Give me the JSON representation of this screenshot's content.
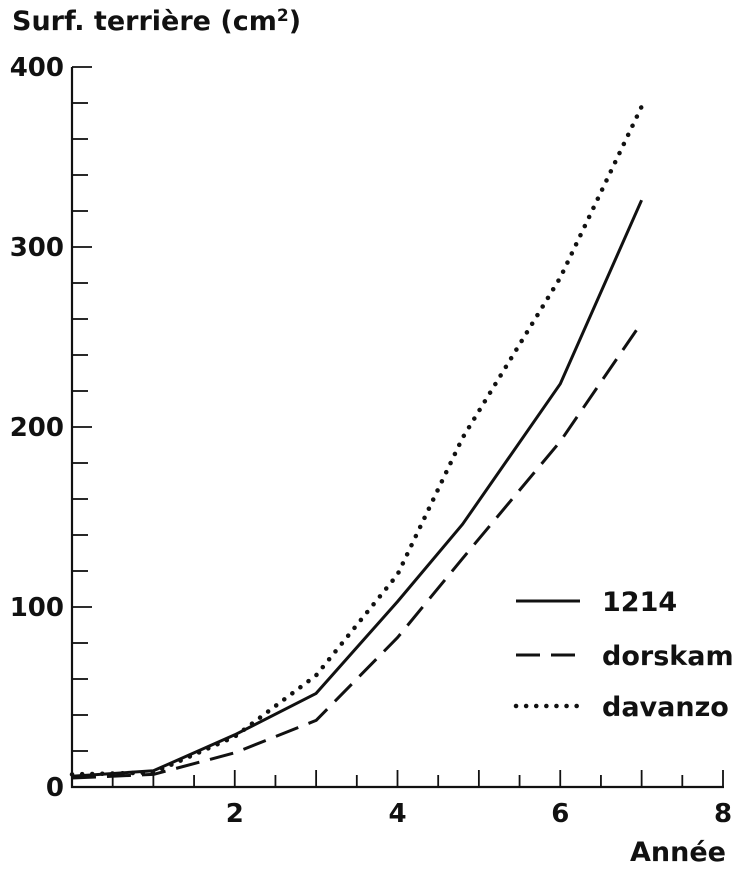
{
  "chart_data": {
    "type": "line",
    "title_main": "Surf. terrière (cm",
    "title_sup": "2",
    "title_close": ")",
    "xlabel": "Année",
    "xlim": [
      0,
      8
    ],
    "ylim": [
      0,
      400
    ],
    "x_ticks": [
      2,
      4,
      6,
      8
    ],
    "y_ticks": [
      0,
      100,
      200,
      300,
      400
    ],
    "y_minor_step": 20,
    "grid": false,
    "legend_position": "lower-right",
    "series": [
      {
        "name": "1214",
        "style": "solid",
        "points": [
          [
            0,
            6
          ],
          [
            1,
            9
          ],
          [
            2,
            29
          ],
          [
            3,
            52
          ],
          [
            4,
            103
          ],
          [
            4.8,
            146
          ],
          [
            6,
            224
          ],
          [
            7,
            326
          ]
        ]
      },
      {
        "name": "dorskam",
        "style": "dashed",
        "points": [
          [
            0,
            5
          ],
          [
            1,
            7
          ],
          [
            2,
            19
          ],
          [
            3,
            37
          ],
          [
            4,
            83
          ],
          [
            4.8,
            127
          ],
          [
            6,
            192
          ],
          [
            7,
            258
          ]
        ]
      },
      {
        "name": "davanzo",
        "style": "dotted",
        "points": [
          [
            0,
            7
          ],
          [
            1,
            8
          ],
          [
            2,
            28
          ],
          [
            3,
            62
          ],
          [
            4,
            118
          ],
          [
            4.8,
            194
          ],
          [
            6,
            283
          ],
          [
            7,
            378
          ]
        ]
      }
    ]
  }
}
